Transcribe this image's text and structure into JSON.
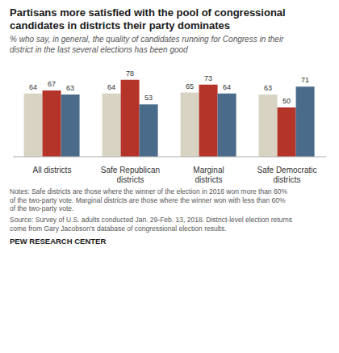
{
  "chart_data": {
    "type": "bar",
    "title": "Partisans more satisfied with the pool of congressional\ncandidates in districts their party dominates",
    "subtitle": "% who say, in general, the quality of candidates running for Congress in their\ndistrict in the last several elections has been good",
    "categories": [
      "All districts",
      "Safe Republican\ndistricts",
      "Marginal\ndistricts",
      "Safe Democratic\ndistricts"
    ],
    "series": [
      {
        "color": "#d9d3c3",
        "values": [
          64,
          64,
          65,
          63
        ]
      },
      {
        "color": "#b5342a",
        "values": [
          67,
          78,
          73,
          50
        ]
      },
      {
        "color": "#4a6b8a",
        "values": [
          63,
          53,
          64,
          71
        ]
      }
    ],
    "ylim": [
      0,
      90
    ],
    "data_labels": true,
    "tick_labels": "x",
    "notes": [
      "Notes: Safe districts are those where the winner of the election in 2016 won more than 60%",
      "of the two-party vote. Marginal districts are those where the winner won with less than 60%",
      "of the two-party vote."
    ],
    "source": [
      "Source: Survey of U.S. adults conducted Jan. 29-Feb. 13, 2018. District-level election returns",
      "come from Gary Jacobson's database of congressional election results."
    ],
    "footer": "PEW RESEARCH CENTER"
  }
}
